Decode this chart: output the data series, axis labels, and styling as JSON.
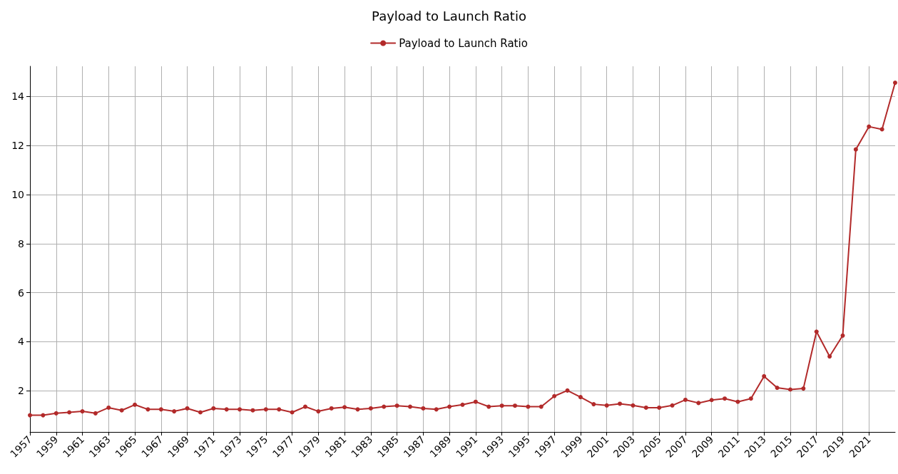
{
  "chart_data": {
    "type": "line",
    "title": "Payload to Launch Ratio",
    "x": [
      1957,
      1958,
      1959,
      1960,
      1961,
      1962,
      1963,
      1964,
      1965,
      1966,
      1967,
      1968,
      1969,
      1970,
      1971,
      1972,
      1973,
      1974,
      1975,
      1976,
      1977,
      1978,
      1979,
      1980,
      1981,
      1982,
      1983,
      1984,
      1985,
      1986,
      1987,
      1988,
      1989,
      1990,
      1991,
      1992,
      1993,
      1994,
      1995,
      1996,
      1997,
      1998,
      1999,
      2000,
      2001,
      2002,
      2003,
      2004,
      2005,
      2006,
      2007,
      2008,
      2009,
      2010,
      2011,
      2012,
      2013,
      2014,
      2015,
      2016,
      2017,
      2018,
      2019,
      2020,
      2021,
      2022,
      2023
    ],
    "series": [
      {
        "name": "Payload to Launch Ratio",
        "color": "#b22a2a",
        "values": [
          1.0,
          1.0,
          1.08,
          1.12,
          1.16,
          1.08,
          1.31,
          1.2,
          1.43,
          1.24,
          1.24,
          1.16,
          1.28,
          1.12,
          1.28,
          1.24,
          1.24,
          1.2,
          1.24,
          1.24,
          1.12,
          1.35,
          1.16,
          1.28,
          1.33,
          1.24,
          1.28,
          1.35,
          1.39,
          1.35,
          1.28,
          1.24,
          1.35,
          1.43,
          1.55,
          1.35,
          1.39,
          1.39,
          1.35,
          1.35,
          1.78,
          2.01,
          1.74,
          1.45,
          1.4,
          1.47,
          1.4,
          1.31,
          1.31,
          1.4,
          1.63,
          1.5,
          1.62,
          1.68,
          1.55,
          1.68,
          2.59,
          2.12,
          2.05,
          2.09,
          4.41,
          3.4,
          4.25,
          11.84,
          12.77,
          12.66,
          14.56
        ]
      }
    ],
    "xlim": [
      1957,
      2023
    ],
    "xticks": [
      1957,
      1959,
      1961,
      1963,
      1965,
      1967,
      1969,
      1971,
      1973,
      1975,
      1977,
      1979,
      1981,
      1983,
      1985,
      1987,
      1989,
      1991,
      1993,
      1995,
      1997,
      1999,
      2001,
      2003,
      2005,
      2007,
      2009,
      2011,
      2013,
      2015,
      2017,
      2019,
      2021
    ],
    "ylim": [
      0.32,
      15.23
    ],
    "yticks": [
      2,
      4,
      6,
      8,
      10,
      12,
      14
    ],
    "grid": true,
    "legend": "top",
    "marker": "circle",
    "line_style": "solid"
  }
}
